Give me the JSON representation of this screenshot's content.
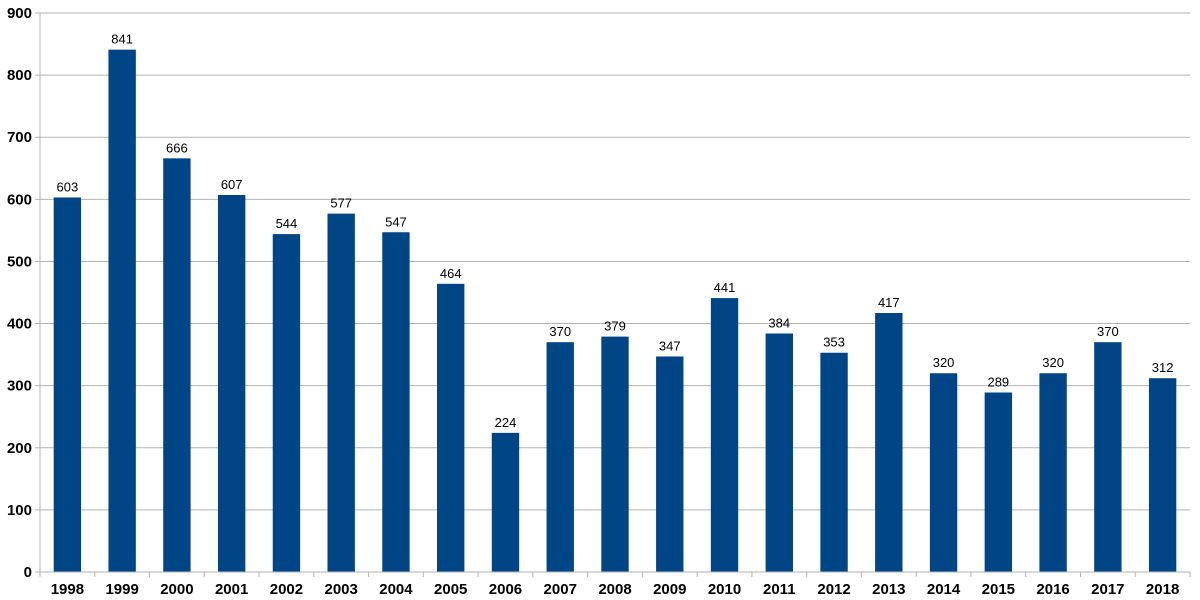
{
  "chart_data": {
    "type": "bar",
    "title": "",
    "xlabel": "",
    "ylabel": "",
    "categories": [
      "1998",
      "1999",
      "2000",
      "2001",
      "2002",
      "2003",
      "2004",
      "2005",
      "2006",
      "2007",
      "2008",
      "2009",
      "2010",
      "2011",
      "2012",
      "2013",
      "2014",
      "2015",
      "2016",
      "2017",
      "2018"
    ],
    "values": [
      603,
      841,
      666,
      607,
      544,
      577,
      547,
      464,
      224,
      370,
      379,
      347,
      441,
      384,
      353,
      417,
      320,
      289,
      320,
      370,
      312
    ],
    "ylim": [
      0,
      900
    ],
    "yticks": [
      0,
      100,
      200,
      300,
      400,
      500,
      600,
      700,
      800,
      900
    ],
    "grid": "horizontal",
    "legend": "none",
    "bar_color": "#004586",
    "grid_color": "#b3b3b3",
    "data_labels": true
  }
}
